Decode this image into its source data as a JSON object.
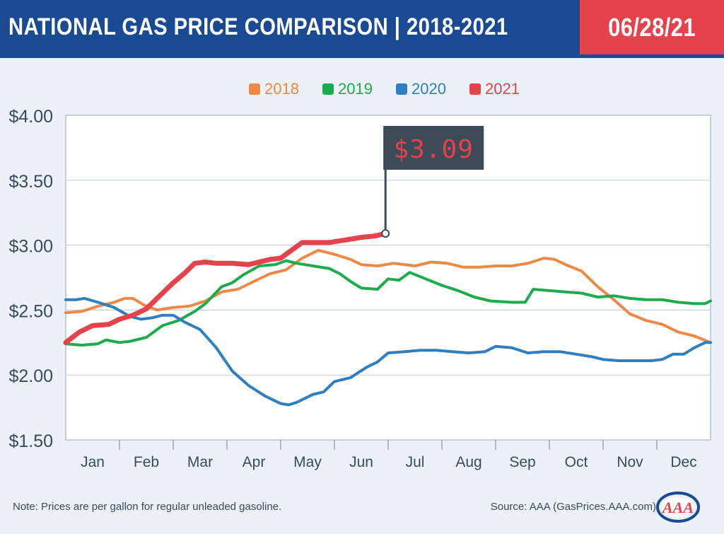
{
  "header": {
    "title": "NATIONAL GAS PRICE COMPARISON | 2018-2021",
    "date": "06/28/21"
  },
  "footer": {
    "note": "Note: Prices are per gallon for regular unleaded gasoline.",
    "source": "Source: AAA (GasPrices.AAA.com)",
    "logo_text": "AAA"
  },
  "colors": {
    "header_blue": "#1b4a94",
    "header_red": "#e5434b",
    "s2018": "#ec8a45",
    "s2019": "#1cac4d",
    "s2020": "#2f7fc0",
    "s2021": "#e5434b",
    "callout_bg": "#3e4a56",
    "callout_text": "#e5434b"
  },
  "chart_data": {
    "type": "line",
    "title": "NATIONAL GAS PRICE COMPARISON | 2018-2021",
    "xlabel": "",
    "ylabel": "",
    "x_unit": "month (fractional, 0 = start of Jan, 12 = end of Dec)",
    "xlim": [
      0,
      12
    ],
    "ylim": [
      1.5,
      4.0
    ],
    "yticks": [
      1.5,
      2.0,
      2.5,
      3.0,
      3.5,
      4.0
    ],
    "ytick_labels": [
      "$1.50",
      "$2.00",
      "$2.50",
      "$3.00",
      "$3.50",
      "$4.00"
    ],
    "categories": [
      "Jan",
      "Feb",
      "Mar",
      "Apr",
      "May",
      "Jun",
      "Jul",
      "Aug",
      "Sep",
      "Oct",
      "Nov",
      "Dec"
    ],
    "grid": true,
    "legend_position": "top-center",
    "callout": {
      "text": "$3.09",
      "x": 5.95,
      "y": 3.09
    },
    "series": [
      {
        "name": "2018",
        "color": "#ec8a45",
        "points": [
          [
            0,
            2.48
          ],
          [
            0.3,
            2.49
          ],
          [
            0.6,
            2.53
          ],
          [
            0.9,
            2.56
          ],
          [
            1.1,
            2.59
          ],
          [
            1.25,
            2.59
          ],
          [
            1.45,
            2.54
          ],
          [
            1.7,
            2.5
          ],
          [
            2.0,
            2.52
          ],
          [
            2.3,
            2.53
          ],
          [
            2.6,
            2.57
          ],
          [
            2.9,
            2.64
          ],
          [
            3.2,
            2.66
          ],
          [
            3.5,
            2.72
          ],
          [
            3.8,
            2.78
          ],
          [
            4.1,
            2.81
          ],
          [
            4.4,
            2.9
          ],
          [
            4.7,
            2.96
          ],
          [
            5.0,
            2.93
          ],
          [
            5.3,
            2.89
          ],
          [
            5.5,
            2.85
          ],
          [
            5.8,
            2.84
          ],
          [
            6.1,
            2.86
          ],
          [
            6.3,
            2.85
          ],
          [
            6.5,
            2.84
          ],
          [
            6.8,
            2.87
          ],
          [
            7.1,
            2.86
          ],
          [
            7.4,
            2.83
          ],
          [
            7.7,
            2.83
          ],
          [
            8.0,
            2.84
          ],
          [
            8.3,
            2.84
          ],
          [
            8.6,
            2.86
          ],
          [
            8.9,
            2.9
          ],
          [
            9.1,
            2.89
          ],
          [
            9.3,
            2.85
          ],
          [
            9.6,
            2.8
          ],
          [
            9.9,
            2.68
          ],
          [
            10.2,
            2.58
          ],
          [
            10.5,
            2.47
          ],
          [
            10.8,
            2.42
          ],
          [
            11.1,
            2.39
          ],
          [
            11.4,
            2.33
          ],
          [
            11.7,
            2.3
          ],
          [
            12.0,
            2.25
          ]
        ]
      },
      {
        "name": "2019",
        "color": "#1cac4d",
        "points": [
          [
            0,
            2.24
          ],
          [
            0.3,
            2.23
          ],
          [
            0.6,
            2.24
          ],
          [
            0.75,
            2.27
          ],
          [
            1.0,
            2.25
          ],
          [
            1.2,
            2.26
          ],
          [
            1.5,
            2.29
          ],
          [
            1.8,
            2.38
          ],
          [
            2.1,
            2.42
          ],
          [
            2.4,
            2.49
          ],
          [
            2.6,
            2.55
          ],
          [
            2.9,
            2.68
          ],
          [
            3.1,
            2.71
          ],
          [
            3.3,
            2.77
          ],
          [
            3.6,
            2.84
          ],
          [
            3.9,
            2.85
          ],
          [
            4.1,
            2.88
          ],
          [
            4.3,
            2.86
          ],
          [
            4.6,
            2.84
          ],
          [
            4.9,
            2.82
          ],
          [
            5.1,
            2.78
          ],
          [
            5.3,
            2.72
          ],
          [
            5.5,
            2.67
          ],
          [
            5.8,
            2.66
          ],
          [
            6.0,
            2.74
          ],
          [
            6.2,
            2.73
          ],
          [
            6.4,
            2.79
          ],
          [
            6.7,
            2.74
          ],
          [
            7.0,
            2.69
          ],
          [
            7.3,
            2.65
          ],
          [
            7.6,
            2.6
          ],
          [
            7.9,
            2.57
          ],
          [
            8.3,
            2.56
          ],
          [
            8.55,
            2.56
          ],
          [
            8.7,
            2.66
          ],
          [
            9.0,
            2.65
          ],
          [
            9.3,
            2.64
          ],
          [
            9.6,
            2.63
          ],
          [
            9.9,
            2.6
          ],
          [
            10.2,
            2.61
          ],
          [
            10.5,
            2.59
          ],
          [
            10.8,
            2.58
          ],
          [
            11.1,
            2.58
          ],
          [
            11.4,
            2.56
          ],
          [
            11.7,
            2.55
          ],
          [
            11.9,
            2.55
          ],
          [
            12.0,
            2.57
          ]
        ]
      },
      {
        "name": "2020",
        "color": "#2f7fc0",
        "points": [
          [
            0,
            2.58
          ],
          [
            0.2,
            2.58
          ],
          [
            0.35,
            2.59
          ],
          [
            0.6,
            2.56
          ],
          [
            0.9,
            2.52
          ],
          [
            1.2,
            2.45
          ],
          [
            1.4,
            2.43
          ],
          [
            1.6,
            2.44
          ],
          [
            1.8,
            2.46
          ],
          [
            2.0,
            2.46
          ],
          [
            2.2,
            2.41
          ],
          [
            2.5,
            2.35
          ],
          [
            2.8,
            2.21
          ],
          [
            3.1,
            2.03
          ],
          [
            3.4,
            1.92
          ],
          [
            3.7,
            1.84
          ],
          [
            4.0,
            1.78
          ],
          [
            4.15,
            1.77
          ],
          [
            4.3,
            1.79
          ],
          [
            4.6,
            1.85
          ],
          [
            4.8,
            1.87
          ],
          [
            5.0,
            1.95
          ],
          [
            5.3,
            1.98
          ],
          [
            5.6,
            2.06
          ],
          [
            5.8,
            2.1
          ],
          [
            6.0,
            2.17
          ],
          [
            6.3,
            2.18
          ],
          [
            6.6,
            2.19
          ],
          [
            6.9,
            2.19
          ],
          [
            7.2,
            2.18
          ],
          [
            7.5,
            2.17
          ],
          [
            7.8,
            2.18
          ],
          [
            8.0,
            2.22
          ],
          [
            8.3,
            2.21
          ],
          [
            8.6,
            2.17
          ],
          [
            8.9,
            2.18
          ],
          [
            9.2,
            2.18
          ],
          [
            9.5,
            2.16
          ],
          [
            9.8,
            2.14
          ],
          [
            10.0,
            2.12
          ],
          [
            10.3,
            2.11
          ],
          [
            10.6,
            2.11
          ],
          [
            10.9,
            2.11
          ],
          [
            11.1,
            2.12
          ],
          [
            11.3,
            2.16
          ],
          [
            11.5,
            2.16
          ],
          [
            11.7,
            2.21
          ],
          [
            11.9,
            2.25
          ],
          [
            12.0,
            2.25
          ]
        ]
      },
      {
        "name": "2021",
        "color": "#e5434b",
        "points": [
          [
            0,
            2.25
          ],
          [
            0.25,
            2.33
          ],
          [
            0.5,
            2.38
          ],
          [
            0.8,
            2.39
          ],
          [
            1.0,
            2.43
          ],
          [
            1.25,
            2.46
          ],
          [
            1.5,
            2.51
          ],
          [
            1.8,
            2.63
          ],
          [
            2.0,
            2.71
          ],
          [
            2.2,
            2.78
          ],
          [
            2.4,
            2.86
          ],
          [
            2.6,
            2.87
          ],
          [
            2.8,
            2.86
          ],
          [
            3.1,
            2.86
          ],
          [
            3.4,
            2.85
          ],
          [
            3.6,
            2.87
          ],
          [
            3.8,
            2.89
          ],
          [
            4.0,
            2.9
          ],
          [
            4.2,
            2.96
          ],
          [
            4.4,
            3.02
          ],
          [
            4.6,
            3.02
          ],
          [
            4.9,
            3.02
          ],
          [
            5.2,
            3.04
          ],
          [
            5.5,
            3.06
          ],
          [
            5.75,
            3.07
          ],
          [
            5.95,
            3.09
          ]
        ]
      }
    ]
  }
}
